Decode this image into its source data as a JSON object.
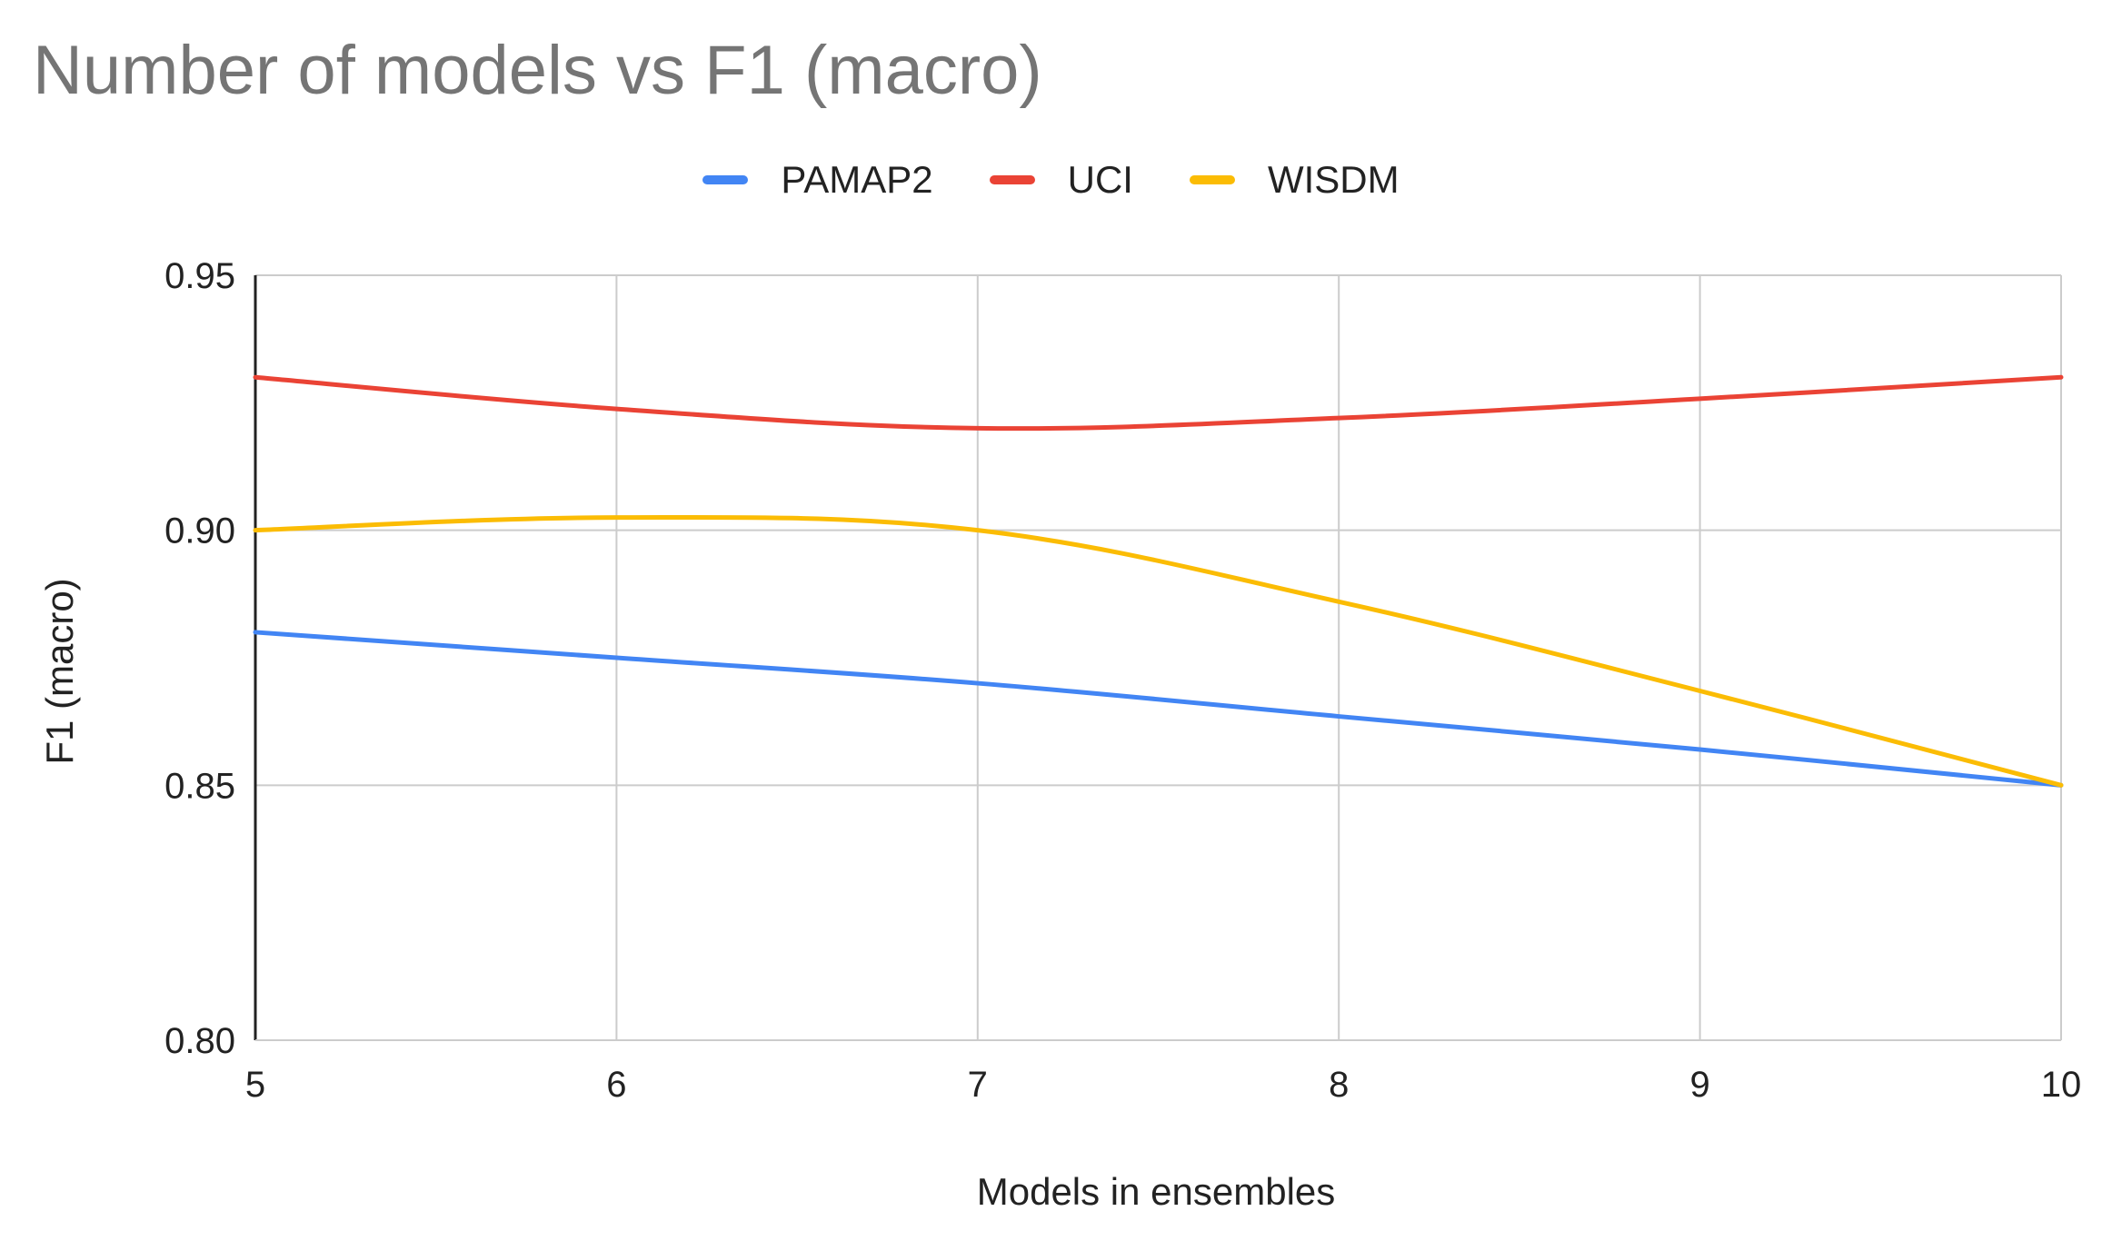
{
  "chart_data": {
    "type": "line",
    "title": "Number of models vs F1 (macro)",
    "xlabel": "Models in ensembles",
    "ylabel": "F1 (macro)",
    "x": [
      5,
      6,
      7,
      8,
      9,
      10
    ],
    "x_tick_labels": [
      "5",
      "6",
      "7",
      "8",
      "9",
      "10"
    ],
    "y_tick_labels": [
      "0.80",
      "0.85",
      "0.90",
      "0.95"
    ],
    "y_ticks": [
      0.8,
      0.85,
      0.9,
      0.95
    ],
    "ylim": [
      0.8,
      0.95
    ],
    "xlim": [
      5,
      10
    ],
    "grid": true,
    "smooth": true,
    "legend_position": "top",
    "series": [
      {
        "name": "PAMAP2",
        "color": "#4285F4",
        "values": [
          0.88,
          0.875,
          0.87,
          0.8635,
          0.857,
          0.85
        ]
      },
      {
        "name": "UCI",
        "color": "#EA4335",
        "values": [
          0.93,
          0.9238,
          0.92,
          0.922,
          0.9258,
          0.93
        ]
      },
      {
        "name": "WISDM",
        "color": "#FBBC04",
        "values": [
          0.9,
          0.9025,
          0.9,
          0.886,
          0.8685,
          0.85
        ]
      }
    ]
  }
}
